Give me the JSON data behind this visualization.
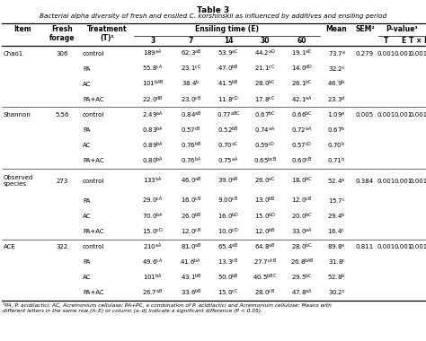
{
  "title": "Table 3",
  "subtitle": "Bacterial alpha diversity of fresh and ensiled C. korshinskii as influenced by additives and ensiling period",
  "footnote": "¹PA, P. acidilactici; AC, Acremonium cellulase; PA+PC, a combination of P. acidilactici and Acremonium cellulose; Means with\ndifferent letters in the same row (A–E) or column (a–d) indicate a significant difference (P < 0.05).",
  "rows": [
    [
      "Chao1",
      "306",
      "control",
      "189aA",
      "62.3aB",
      "53.9aC",
      "44.2aD",
      "19.1aE",
      "73.7a",
      "0.279",
      "0.001",
      "0.001",
      "0.001"
    ],
    [
      "",
      "",
      "PA",
      "55.8cA",
      "23.1cC",
      "47.0bB",
      "21.1cC",
      "14.0dD",
      "32.2c",
      "",
      "",
      "",
      ""
    ],
    [
      "",
      "",
      "AC",
      "101bAB",
      "38.4b",
      "41.5bB",
      "28.0bC",
      "26.1bC",
      "46.9b",
      "",
      "",
      "",
      ""
    ],
    [
      "",
      "",
      "PA+AC",
      "22.0dB",
      "23.0cB",
      "11.8cD",
      "17.8cC",
      "42.1aA",
      "23.3d",
      "",
      "",
      "",
      ""
    ],
    [
      "Shannon",
      "5.56",
      "control",
      "2.49aA",
      "0.84aB",
      "0.77aBC",
      "0.67bC",
      "0.66bC",
      "1.09a",
      "0.005",
      "0.001",
      "0.001",
      "0.001"
    ],
    [
      "",
      "",
      "PA",
      "0.83bA",
      "0.57cB",
      "0.52bB",
      "0.74aA",
      "0.72aA",
      "0.67b",
      "",
      "",
      "",
      ""
    ],
    [
      "",
      "",
      "AC",
      "0.89bA",
      "0.76bB",
      "0.70aC",
      "0.59cD",
      "0.57cD",
      "0.70b",
      "",
      "",
      "",
      ""
    ],
    [
      "",
      "",
      "PA+AC",
      "0.80bA",
      "0.76bA",
      "0.75aA",
      "0.65bcB",
      "0.60cB",
      "0.71b",
      "",
      "",
      "",
      ""
    ],
    [
      "Observed\nspecies",
      "273",
      "control",
      "133aA",
      "46.0aB",
      "39.0aB",
      "26.0aC",
      "18.0bC",
      "52.4a",
      "0.384",
      "0.001",
      "0.001",
      "0.001"
    ],
    [
      "",
      "",
      "PA",
      "29.0cA",
      "16.0cB",
      "9.00cB",
      "13.0bB",
      "12.0cB",
      "15.7c",
      "",
      "",
      "",
      ""
    ],
    [
      "",
      "",
      "AC",
      "70.0bA",
      "26.0bB",
      "16.0bD",
      "15.0bD",
      "20.0bC",
      "29.4b",
      "",
      "",
      "",
      ""
    ],
    [
      "",
      "",
      "PA+AC",
      "15.0cD",
      "12.0cB",
      "10.0cD",
      "12.0bB",
      "33.0aA",
      "16.4c",
      "",
      "",
      "",
      ""
    ],
    [
      "ACE",
      "322",
      "control",
      "210aA",
      "81.0aB",
      "65.4aB",
      "64.8aB",
      "28.0bC",
      "89.8a",
      "0.811",
      "0.001",
      "0.001",
      "0.001"
    ],
    [
      "",
      "",
      "PA",
      "49.6cA",
      "41.6bA",
      "13.3cB",
      "27.7cAB",
      "26.8bAB",
      "31.8c",
      "",
      "",
      "",
      ""
    ],
    [
      "",
      "",
      "AC",
      "101bA",
      "43.1bB",
      "50.0bB",
      "40.5bBC",
      "29.5bC",
      "52.8b",
      "",
      "",
      "",
      ""
    ],
    [
      "",
      "",
      "PA+AC",
      "26.7aB",
      "33.6bB",
      "15.0cC",
      "28.0cB",
      "47.8aA",
      "30.2c",
      "",
      "",
      "",
      ""
    ]
  ],
  "background": "#ffffff",
  "text_color": "#000000",
  "line_color": "#000000"
}
